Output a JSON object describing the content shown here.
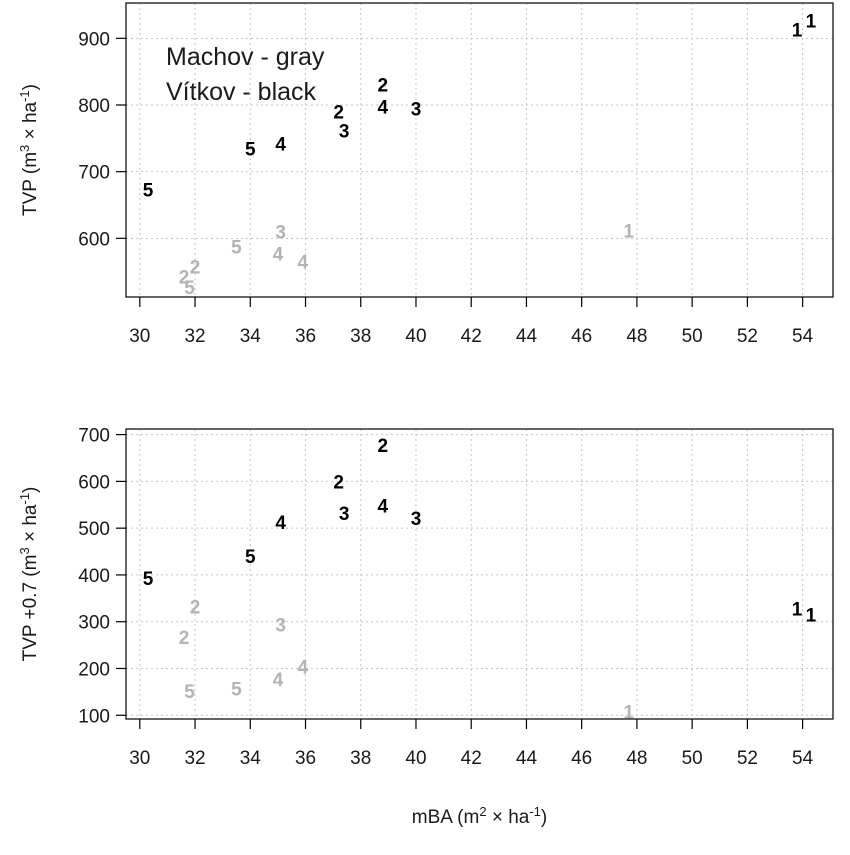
{
  "chart_data": [
    {
      "type": "scatter",
      "ylabel": "TVP (m³ × ha⁻¹)",
      "xlim": [
        29.5,
        55.1
      ],
      "ylim": [
        512,
        953
      ],
      "xticks": [
        30,
        32,
        34,
        36,
        38,
        40,
        42,
        44,
        46,
        48,
        50,
        52,
        54
      ],
      "yticks": [
        600,
        700,
        800,
        900
      ],
      "grid": true,
      "legend": {
        "placement": "top-left",
        "lines": [
          "Machov - gray",
          "Vítkov - black"
        ]
      },
      "series": [
        {
          "name": "Vítkov",
          "color": "#000000",
          "points": [
            {
              "x": 53.8,
              "y": 913,
              "label": "1"
            },
            {
              "x": 54.3,
              "y": 927,
              "label": "1"
            },
            {
              "x": 37.2,
              "y": 790,
              "label": "2"
            },
            {
              "x": 38.8,
              "y": 831,
              "label": "2"
            },
            {
              "x": 37.4,
              "y": 762,
              "label": "3"
            },
            {
              "x": 40.0,
              "y": 795,
              "label": "3"
            },
            {
              "x": 35.1,
              "y": 742,
              "label": "4"
            },
            {
              "x": 38.8,
              "y": 798,
              "label": "4"
            },
            {
              "x": 30.3,
              "y": 673,
              "label": "5"
            },
            {
              "x": 34.0,
              "y": 735,
              "label": "5"
            }
          ]
        },
        {
          "name": "Machov",
          "color": "#b3b3b3",
          "points": [
            {
              "x": 47.7,
              "y": 612,
              "label": "1"
            },
            {
              "x": 31.6,
              "y": 543,
              "label": "2"
            },
            {
              "x": 32.0,
              "y": 558,
              "label": "2"
            },
            {
              "x": 35.1,
              "y": 610,
              "label": "3"
            },
            {
              "x": 35.0,
              "y": 577,
              "label": "4"
            },
            {
              "x": 35.9,
              "y": 565,
              "label": "4"
            },
            {
              "x": 31.8,
              "y": 527,
              "label": "5"
            },
            {
              "x": 33.5,
              "y": 588,
              "label": "5"
            }
          ]
        }
      ]
    },
    {
      "type": "scatter",
      "xlabel": "mBA (m² × ha⁻¹)",
      "ylabel": "TVP +0.7 (m³ × ha⁻¹)",
      "xlim": [
        29.5,
        55.1
      ],
      "ylim": [
        92,
        712
      ],
      "xticks": [
        30,
        32,
        34,
        36,
        38,
        40,
        42,
        44,
        46,
        48,
        50,
        52,
        54
      ],
      "yticks": [
        100,
        200,
        300,
        400,
        500,
        600,
        700
      ],
      "grid": true,
      "series": [
        {
          "name": "Vítkov",
          "color": "#000000",
          "points": [
            {
              "x": 53.8,
              "y": 328,
              "label": "1"
            },
            {
              "x": 54.3,
              "y": 315,
              "label": "1"
            },
            {
              "x": 37.2,
              "y": 600,
              "label": "2"
            },
            {
              "x": 38.8,
              "y": 678,
              "label": "2"
            },
            {
              "x": 37.4,
              "y": 532,
              "label": "3"
            },
            {
              "x": 40.0,
              "y": 522,
              "label": "3"
            },
            {
              "x": 35.1,
              "y": 513,
              "label": "4"
            },
            {
              "x": 38.8,
              "y": 548,
              "label": "4"
            },
            {
              "x": 30.3,
              "y": 393,
              "label": "5"
            },
            {
              "x": 34.0,
              "y": 441,
              "label": "5"
            }
          ]
        },
        {
          "name": "Machov",
          "color": "#b3b3b3",
          "points": [
            {
              "x": 47.7,
              "y": 108,
              "label": "1"
            },
            {
              "x": 31.6,
              "y": 267,
              "label": "2"
            },
            {
              "x": 32.0,
              "y": 332,
              "label": "2"
            },
            {
              "x": 35.1,
              "y": 294,
              "label": "3"
            },
            {
              "x": 35.0,
              "y": 178,
              "label": "4"
            },
            {
              "x": 35.9,
              "y": 204,
              "label": "4"
            },
            {
              "x": 31.8,
              "y": 152,
              "label": "5"
            },
            {
              "x": 33.5,
              "y": 157,
              "label": "5"
            }
          ]
        }
      ]
    }
  ]
}
